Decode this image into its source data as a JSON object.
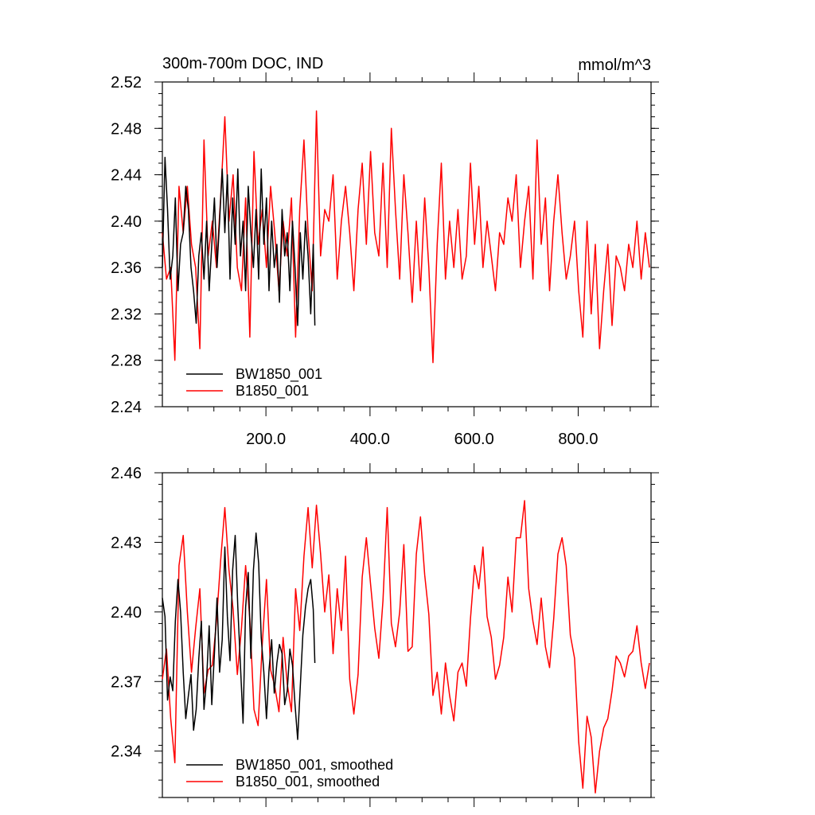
{
  "chart_data": [
    {
      "type": "line",
      "title": "300m-700m DOC, IND",
      "units": "mmol/m^3",
      "xlim": [
        1,
        940
      ],
      "ylim": [
        2.24,
        2.52
      ],
      "xticks": [
        200,
        400,
        600,
        800
      ],
      "xtick_labels": [
        "200.0",
        "400.0",
        "600.0",
        "800.0"
      ],
      "yticks": [
        2.24,
        2.28,
        2.32,
        2.36,
        2.4,
        2.44,
        2.48,
        2.52
      ],
      "ytick_labels": [
        "2.24",
        "2.28",
        "2.32",
        "2.36",
        "2.40",
        "2.44",
        "2.48",
        "2.52"
      ],
      "legend": "bottom-left",
      "series": [
        {
          "name": "BW1850_001",
          "color": "#000000",
          "x": [
            1,
            6,
            11,
            16,
            21,
            26,
            31,
            36,
            41,
            46,
            51,
            56,
            61,
            66,
            71,
            76,
            81,
            86,
            91,
            96,
            101,
            106,
            111,
            116,
            121,
            126,
            131,
            136,
            141,
            146,
            151,
            156,
            161,
            166,
            171,
            176,
            181,
            186,
            191,
            196,
            201,
            206,
            211,
            216,
            221,
            226,
            231,
            236,
            241,
            246,
            251,
            256,
            261,
            266,
            271,
            276,
            281,
            286,
            291,
            294
          ],
          "values": [
            2.36,
            2.455,
            2.41,
            2.35,
            2.37,
            2.42,
            2.34,
            2.38,
            2.39,
            2.43,
            2.41,
            2.36,
            2.34,
            2.312,
            2.37,
            2.39,
            2.35,
            2.4,
            2.34,
            2.38,
            2.42,
            2.36,
            2.4,
            2.445,
            2.39,
            2.44,
            2.35,
            2.42,
            2.38,
            2.445,
            2.37,
            2.4,
            2.34,
            2.43,
            2.39,
            2.36,
            2.41,
            2.35,
            2.445,
            2.38,
            2.42,
            2.34,
            2.4,
            2.36,
            2.38,
            2.33,
            2.41,
            2.37,
            2.39,
            2.34,
            2.4,
            2.36,
            2.31,
            2.39,
            2.35,
            2.4,
            2.37,
            2.32,
            2.38,
            2.31
          ]
        },
        {
          "name": "B1850_001",
          "color": "#ff0000",
          "x": [
            1,
            9,
            17,
            25,
            33,
            41,
            49,
            57,
            65,
            73,
            81,
            89,
            97,
            105,
            113,
            121,
            129,
            137,
            145,
            153,
            161,
            169,
            177,
            185,
            193,
            201,
            209,
            217,
            225,
            233,
            241,
            249,
            257,
            265,
            273,
            281,
            289,
            297,
            305,
            313,
            321,
            329,
            337,
            345,
            353,
            361,
            369,
            377,
            385,
            393,
            401,
            409,
            417,
            425,
            433,
            441,
            449,
            457,
            465,
            473,
            481,
            489,
            497,
            505,
            513,
            521,
            529,
            537,
            545,
            553,
            561,
            569,
            577,
            585,
            593,
            601,
            609,
            617,
            625,
            633,
            641,
            649,
            657,
            665,
            673,
            681,
            689,
            697,
            705,
            713,
            721,
            729,
            737,
            745,
            753,
            761,
            769,
            777,
            785,
            793,
            801,
            809,
            817,
            825,
            833,
            841,
            849,
            857,
            865,
            873,
            881,
            889,
            897,
            905,
            913,
            921,
            929,
            937
          ],
          "values": [
            2.39,
            2.35,
            2.36,
            2.28,
            2.43,
            2.39,
            2.43,
            2.38,
            2.36,
            2.29,
            2.47,
            2.37,
            2.4,
            2.36,
            2.42,
            2.49,
            2.4,
            2.44,
            2.36,
            2.34,
            2.42,
            2.3,
            2.46,
            2.38,
            2.41,
            2.36,
            2.43,
            2.39,
            2.34,
            2.4,
            2.37,
            2.42,
            2.3,
            2.41,
            2.47,
            2.39,
            2.34,
            2.495,
            2.37,
            2.41,
            2.4,
            2.44,
            2.35,
            2.4,
            2.43,
            2.39,
            2.34,
            2.41,
            2.45,
            2.38,
            2.46,
            2.39,
            2.37,
            2.45,
            2.36,
            2.48,
            2.41,
            2.35,
            2.44,
            2.39,
            2.33,
            2.4,
            2.34,
            2.42,
            2.36,
            2.278,
            2.38,
            2.45,
            2.35,
            2.4,
            2.36,
            2.41,
            2.35,
            2.37,
            2.45,
            2.38,
            2.43,
            2.36,
            2.4,
            2.37,
            2.34,
            2.39,
            2.38,
            2.42,
            2.4,
            2.44,
            2.36,
            2.4,
            2.43,
            2.35,
            2.47,
            2.38,
            2.42,
            2.34,
            2.4,
            2.44,
            2.39,
            2.35,
            2.37,
            2.4,
            2.34,
            2.3,
            2.4,
            2.32,
            2.38,
            2.29,
            2.34,
            2.38,
            2.31,
            2.37,
            2.36,
            2.34,
            2.38,
            2.36,
            2.4,
            2.35,
            2.39,
            2.36
          ]
        }
      ]
    },
    {
      "type": "line",
      "xlim": [
        1,
        940
      ],
      "ylim": [
        2.32,
        2.46
      ],
      "xticks": [
        200,
        400,
        600,
        800
      ],
      "yticks": [
        2.34,
        2.37,
        2.4,
        2.43,
        2.46
      ],
      "ytick_labels": [
        "2.34",
        "2.37",
        "2.40",
        "2.43",
        "2.46"
      ],
      "legend": "bottom-left",
      "series": [
        {
          "name": "BW1850_001, smoothed",
          "color": "#000000",
          "x": [
            1,
            6,
            11,
            16,
            21,
            26,
            31,
            36,
            41,
            46,
            51,
            56,
            61,
            66,
            71,
            76,
            81,
            86,
            91,
            96,
            101,
            106,
            111,
            116,
            121,
            126,
            131,
            136,
            141,
            146,
            151,
            156,
            161,
            166,
            171,
            176,
            181,
            186,
            191,
            196,
            201,
            206,
            211,
            216,
            221,
            226,
            231,
            236,
            241,
            246,
            251,
            256,
            261,
            266,
            271,
            276,
            281,
            286,
            291,
            294
          ],
          "values": [
            2.406,
            2.398,
            2.362,
            2.372,
            2.366,
            2.396,
            2.414,
            2.4,
            2.374,
            2.354,
            2.364,
            2.373,
            2.349,
            2.358,
            2.38,
            2.396,
            2.358,
            2.371,
            2.394,
            2.36,
            2.382,
            2.406,
            2.374,
            2.388,
            2.428,
            2.398,
            2.379,
            2.418,
            2.433,
            2.402,
            2.377,
            2.352,
            2.402,
            2.417,
            2.38,
            2.418,
            2.434,
            2.421,
            2.389,
            2.374,
            2.354,
            2.375,
            2.388,
            2.365,
            2.378,
            2.386,
            2.382,
            2.36,
            2.366,
            2.384,
            2.377,
            2.36,
            2.345,
            2.368,
            2.39,
            2.402,
            2.41,
            2.414,
            2.401,
            2.378
          ]
        },
        {
          "name": "B1850_001, smoothed",
          "color": "#ff0000",
          "x": [
            1,
            9,
            17,
            25,
            33,
            41,
            49,
            57,
            65,
            73,
            81,
            89,
            97,
            105,
            113,
            121,
            129,
            137,
            145,
            153,
            161,
            169,
            177,
            185,
            193,
            201,
            209,
            217,
            225,
            233,
            241,
            249,
            257,
            265,
            273,
            281,
            289,
            297,
            305,
            313,
            321,
            329,
            337,
            345,
            353,
            361,
            369,
            377,
            385,
            393,
            401,
            409,
            417,
            425,
            433,
            441,
            449,
            457,
            465,
            473,
            481,
            489,
            497,
            505,
            513,
            521,
            529,
            537,
            545,
            553,
            561,
            569,
            577,
            585,
            593,
            601,
            609,
            617,
            625,
            633,
            641,
            649,
            657,
            665,
            673,
            681,
            689,
            697,
            705,
            713,
            721,
            729,
            737,
            745,
            753,
            761,
            769,
            777,
            785,
            793,
            801,
            809,
            817,
            825,
            833,
            841,
            849,
            857,
            865,
            873,
            881,
            889,
            897,
            905,
            913,
            921,
            929,
            937
          ],
          "values": [
            2.371,
            2.384,
            2.354,
            2.335,
            2.42,
            2.433,
            2.4,
            2.374,
            2.393,
            2.41,
            2.365,
            2.375,
            2.377,
            2.396,
            2.422,
            2.445,
            2.418,
            2.401,
            2.373,
            2.393,
            2.42,
            2.397,
            2.358,
            2.351,
            2.386,
            2.414,
            2.375,
            2.368,
            2.357,
            2.389,
            2.369,
            2.357,
            2.41,
            2.392,
            2.424,
            2.445,
            2.419,
            2.446,
            2.425,
            2.4,
            2.416,
            2.382,
            2.41,
            2.392,
            2.424,
            2.371,
            2.356,
            2.373,
            2.415,
            2.432,
            2.412,
            2.393,
            2.38,
            2.405,
            2.445,
            2.395,
            2.385,
            2.4,
            2.429,
            2.383,
            2.385,
            2.425,
            2.441,
            2.416,
            2.399,
            2.364,
            2.374,
            2.356,
            2.378,
            2.364,
            2.353,
            2.374,
            2.378,
            2.368,
            2.397,
            2.42,
            2.41,
            2.428,
            2.398,
            2.389,
            2.371,
            2.377,
            2.389,
            2.415,
            2.4,
            2.432,
            2.432,
            2.448,
            2.41,
            2.396,
            2.386,
            2.406,
            2.385,
            2.376,
            2.397,
            2.425,
            2.432,
            2.42,
            2.39,
            2.38,
            2.344,
            2.324,
            2.355,
            2.346,
            2.322,
            2.34,
            2.35,
            2.354,
            2.366,
            2.381,
            2.378,
            2.372,
            2.381,
            2.383,
            2.394,
            2.378,
            2.367,
            2.378
          ]
        }
      ]
    }
  ]
}
